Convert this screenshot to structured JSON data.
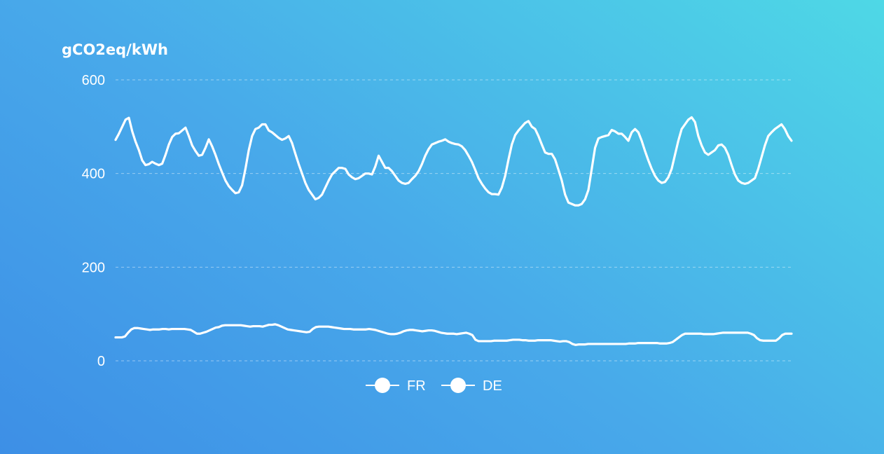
{
  "chart_data": {
    "type": "line",
    "ylabel": "gCO2eq/kWh",
    "ylim": [
      0,
      600
    ],
    "yticks": [
      0,
      200,
      400,
      600
    ],
    "grid": true,
    "legend_position": "bottom",
    "line_color": "#ffffff",
    "background_colors": [
      "#3d8fe6",
      "#4ed8e6"
    ],
    "series": [
      {
        "name": "FR",
        "values": [
          472,
          485,
          500,
          515,
          519,
          490,
          468,
          450,
          428,
          418,
          420,
          425,
          421,
          418,
          421,
          440,
          462,
          478,
          485,
          486,
          492,
          498,
          480,
          460,
          448,
          438,
          440,
          455,
          473,
          458,
          440,
          420,
          402,
          385,
          373,
          365,
          358,
          360,
          375,
          410,
          450,
          480,
          495,
          498,
          505,
          505,
          492,
          488,
          482,
          476,
          472,
          475,
          480,
          465,
          442,
          420,
          400,
          380,
          365,
          355,
          345,
          348,
          355,
          370,
          385,
          398,
          405,
          412,
          412,
          410,
          398,
          392,
          388,
          390,
          395,
          400,
          400,
          398,
          415,
          438,
          425,
          412,
          412,
          405,
          395,
          385,
          380,
          378,
          380,
          388,
          395,
          405,
          420,
          438,
          452,
          462,
          465,
          468,
          470,
          473,
          468,
          465,
          463,
          462,
          458,
          450,
          438,
          425,
          408,
          390,
          378,
          368,
          360,
          356,
          356,
          355,
          370,
          395,
          430,
          462,
          482,
          492,
          500,
          508,
          512,
          500,
          495,
          480,
          462,
          445,
          442,
          442,
          430,
          408,
          385,
          355,
          338,
          335,
          332,
          332,
          335,
          345,
          365,
          410,
          455,
          475,
          478,
          480,
          482,
          493,
          490,
          485,
          485,
          478,
          470,
          488,
          495,
          488,
          470,
          448,
          428,
          410,
          395,
          385,
          380,
          382,
          392,
          410,
          440,
          470,
          495,
          505,
          515,
          520,
          510,
          480,
          460,
          445,
          440,
          445,
          450,
          460,
          462,
          455,
          440,
          418,
          398,
          385,
          380,
          378,
          380,
          385,
          390,
          410,
          435,
          460,
          480,
          488,
          495,
          500,
          505,
          495,
          480,
          470
        ]
      },
      {
        "name": "DE",
        "values": [
          50,
          50,
          50,
          52,
          60,
          67,
          70,
          70,
          69,
          68,
          67,
          66,
          67,
          67,
          67,
          68,
          68,
          67,
          68,
          68,
          68,
          68,
          68,
          67,
          66,
          62,
          58,
          58,
          60,
          62,
          65,
          68,
          71,
          72,
          75,
          76,
          76,
          76,
          76,
          76,
          76,
          75,
          74,
          73,
          74,
          74,
          74,
          73,
          75,
          77,
          77,
          78,
          76,
          73,
          70,
          67,
          66,
          65,
          64,
          63,
          62,
          61,
          62,
          68,
          72,
          73,
          73,
          73,
          73,
          72,
          71,
          70,
          69,
          68,
          68,
          68,
          67,
          67,
          67,
          67,
          67,
          68,
          67,
          66,
          64,
          62,
          60,
          58,
          57,
          57,
          58,
          60,
          63,
          65,
          66,
          66,
          65,
          64,
          63,
          64,
          65,
          65,
          64,
          62,
          60,
          59,
          58,
          58,
          58,
          57,
          58,
          59,
          60,
          58,
          55,
          45,
          42,
          42,
          42,
          42,
          42,
          43,
          43,
          43,
          43,
          43,
          44,
          45,
          45,
          45,
          44,
          44,
          43,
          43,
          43,
          44,
          44,
          44,
          44,
          44,
          43,
          42,
          41,
          42,
          42,
          40,
          36,
          34,
          35,
          35,
          35,
          36,
          36,
          36,
          36,
          36,
          36,
          36,
          36,
          36,
          36,
          36,
          36,
          36,
          37,
          37,
          37,
          38,
          38,
          38,
          38,
          38,
          38,
          38,
          37,
          37,
          37,
          38,
          40,
          45,
          50,
          55,
          58,
          58,
          58,
          58,
          58,
          58,
          57,
          57,
          57,
          57,
          58,
          59,
          60,
          60,
          60,
          60,
          60,
          60,
          60,
          60,
          60,
          58,
          55,
          48,
          44,
          43,
          43,
          43,
          43,
          43,
          48,
          55,
          58,
          58,
          58
        ]
      }
    ]
  }
}
